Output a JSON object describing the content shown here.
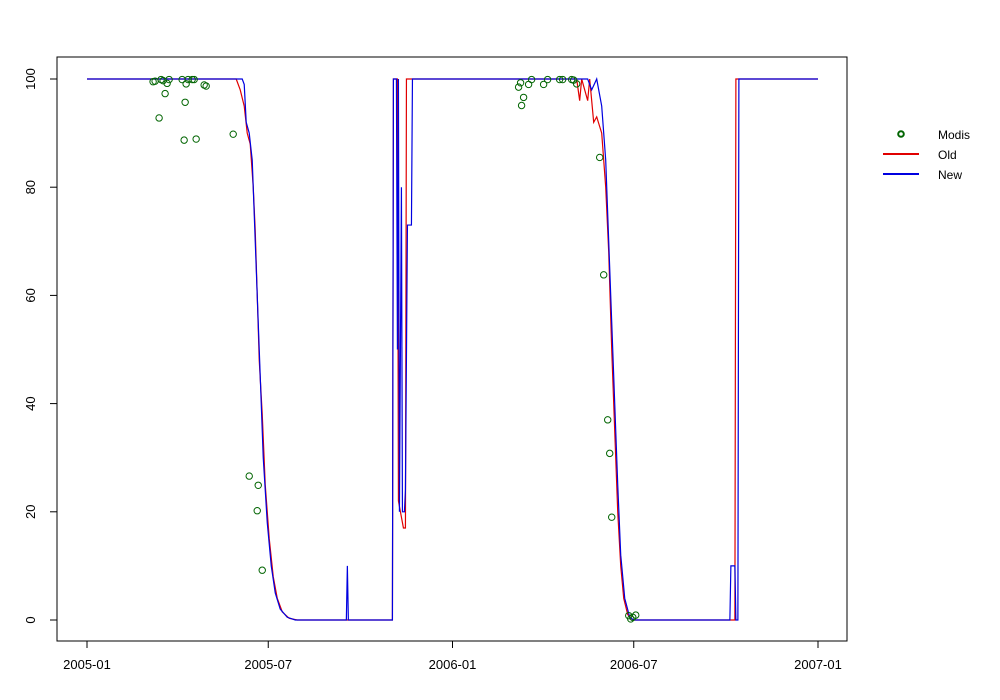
{
  "chart_data": {
    "type": "line",
    "title": "",
    "xlabel": "",
    "ylabel": "",
    "xlim": [
      "2005-01-01",
      "2007-01-01"
    ],
    "ylim": [
      0,
      100
    ],
    "x_ticks": [
      "2005-01",
      "2005-07",
      "2006-01",
      "2006-07",
      "2007-01"
    ],
    "y_ticks": [
      0,
      20,
      40,
      60,
      80,
      100
    ],
    "grid": false,
    "legend_position": "right",
    "series": [
      {
        "name": "Modis",
        "kind": "scatter",
        "color": "#006400",
        "marker": "open-circle",
        "points": [
          [
            "2005-03-08",
            99.5
          ],
          [
            "2005-03-10",
            99.6
          ],
          [
            "2005-03-14",
            92.8
          ],
          [
            "2005-03-16",
            99.9
          ],
          [
            "2005-03-18",
            99.7
          ],
          [
            "2005-03-20",
            97.3
          ],
          [
            "2005-03-22",
            99.2
          ],
          [
            "2005-03-24",
            99.9
          ],
          [
            "2005-04-06",
            99.9
          ],
          [
            "2005-04-08",
            88.7
          ],
          [
            "2005-04-09",
            95.7
          ],
          [
            "2005-04-10",
            99.1
          ],
          [
            "2005-04-12",
            99.9
          ],
          [
            "2005-04-16",
            99.9
          ],
          [
            "2005-04-18",
            99.9
          ],
          [
            "2005-04-20",
            88.9
          ],
          [
            "2005-04-28",
            98.9
          ],
          [
            "2005-04-30",
            98.7
          ],
          [
            "2005-05-27",
            89.8
          ],
          [
            "2005-06-12",
            26.6
          ],
          [
            "2005-06-20",
            20.2
          ],
          [
            "2005-06-21",
            24.9
          ],
          [
            "2005-06-25",
            9.2
          ],
          [
            "2006-03-08",
            98.5
          ],
          [
            "2006-03-10",
            99.3
          ],
          [
            "2006-03-11",
            95.1
          ],
          [
            "2006-03-13",
            96.6
          ],
          [
            "2006-03-18",
            99.0
          ],
          [
            "2006-03-21",
            99.9
          ],
          [
            "2006-04-02",
            99.0
          ],
          [
            "2006-04-06",
            99.9
          ],
          [
            "2006-04-18",
            99.9
          ],
          [
            "2006-04-21",
            99.9
          ],
          [
            "2006-04-30",
            99.9
          ],
          [
            "2006-05-02",
            99.8
          ],
          [
            "2006-05-05",
            99.1
          ],
          [
            "2006-05-28",
            85.5
          ],
          [
            "2006-06-01",
            63.8
          ],
          [
            "2006-06-05",
            37.0
          ],
          [
            "2006-06-07",
            30.8
          ],
          [
            "2006-06-09",
            19.0
          ],
          [
            "2006-06-26",
            0.8
          ],
          [
            "2006-06-28",
            0.2
          ],
          [
            "2006-06-30",
            0.5
          ],
          [
            "2006-07-03",
            0.9
          ]
        ]
      },
      {
        "name": "Old",
        "kind": "line",
        "color": "#e00000",
        "points": [
          [
            "2005-01-01",
            100
          ],
          [
            "2005-05-30",
            100
          ],
          [
            "2005-06-03",
            98
          ],
          [
            "2005-06-07",
            95
          ],
          [
            "2005-06-10",
            90
          ],
          [
            "2005-06-13",
            88
          ],
          [
            "2005-06-16",
            80
          ],
          [
            "2005-06-18",
            72
          ],
          [
            "2005-06-20",
            60
          ],
          [
            "2005-06-22",
            48
          ],
          [
            "2005-06-25",
            38
          ],
          [
            "2005-06-28",
            25
          ],
          [
            "2005-07-02",
            15
          ],
          [
            "2005-07-06",
            8
          ],
          [
            "2005-07-10",
            4
          ],
          [
            "2005-07-15",
            1.5
          ],
          [
            "2005-07-22",
            0.3
          ],
          [
            "2005-07-30",
            0
          ],
          [
            "2005-11-02",
            0
          ],
          [
            "2005-11-03",
            100
          ],
          [
            "2005-11-07",
            100
          ],
          [
            "2005-11-08",
            22
          ],
          [
            "2005-11-10",
            20
          ],
          [
            "2005-11-13",
            17
          ],
          [
            "2005-11-15",
            17
          ],
          [
            "2005-11-16",
            100
          ],
          [
            "2006-04-28",
            100
          ],
          [
            "2006-05-05",
            100
          ],
          [
            "2006-05-08",
            96
          ],
          [
            "2006-05-10",
            100
          ],
          [
            "2006-05-13",
            98
          ],
          [
            "2006-05-16",
            96
          ],
          [
            "2006-05-18",
            100
          ],
          [
            "2006-05-22",
            92
          ],
          [
            "2006-05-25",
            93
          ],
          [
            "2006-05-30",
            90
          ],
          [
            "2006-06-03",
            80
          ],
          [
            "2006-06-06",
            68
          ],
          [
            "2006-06-09",
            50
          ],
          [
            "2006-06-11",
            40
          ],
          [
            "2006-06-13",
            30
          ],
          [
            "2006-06-15",
            20
          ],
          [
            "2006-06-18",
            10
          ],
          [
            "2006-06-21",
            4
          ],
          [
            "2006-06-25",
            1
          ],
          [
            "2006-06-30",
            0
          ],
          [
            "2006-10-10",
            0
          ],
          [
            "2006-10-11",
            100
          ],
          [
            "2007-01-01",
            100
          ]
        ]
      },
      {
        "name": "New",
        "kind": "line",
        "color": "#0000e0",
        "points": [
          [
            "2005-01-01",
            100
          ],
          [
            "2005-06-05",
            100
          ],
          [
            "2005-06-07",
            99
          ],
          [
            "2005-06-09",
            92
          ],
          [
            "2005-06-12",
            90
          ],
          [
            "2005-06-15",
            85
          ],
          [
            "2005-06-17",
            75
          ],
          [
            "2005-06-20",
            60
          ],
          [
            "2005-06-23",
            45
          ],
          [
            "2005-06-26",
            30
          ],
          [
            "2005-06-30",
            18
          ],
          [
            "2005-07-04",
            10
          ],
          [
            "2005-07-08",
            5
          ],
          [
            "2005-07-13",
            2
          ],
          [
            "2005-07-20",
            0.5
          ],
          [
            "2005-07-28",
            0
          ],
          [
            "2005-09-17",
            0
          ],
          [
            "2005-09-18",
            10
          ],
          [
            "2005-09-19",
            0
          ],
          [
            "2005-11-02",
            0
          ],
          [
            "2005-11-03",
            100
          ],
          [
            "2005-11-06",
            100
          ],
          [
            "2005-11-07",
            50
          ],
          [
            "2005-11-08",
            100
          ],
          [
            "2005-11-09",
            20
          ],
          [
            "2005-11-11",
            80
          ],
          [
            "2005-11-12",
            20
          ],
          [
            "2005-11-14",
            20
          ],
          [
            "2005-11-15",
            24
          ],
          [
            "2005-11-17",
            73
          ],
          [
            "2005-11-21",
            73
          ],
          [
            "2005-11-22",
            100
          ],
          [
            "2006-05-08",
            100
          ],
          [
            "2006-05-12",
            100
          ],
          [
            "2006-05-16",
            100
          ],
          [
            "2006-05-20",
            98
          ],
          [
            "2006-05-25",
            100
          ],
          [
            "2006-05-30",
            95
          ],
          [
            "2006-06-03",
            85
          ],
          [
            "2006-06-06",
            70
          ],
          [
            "2006-06-09",
            55
          ],
          [
            "2006-06-12",
            40
          ],
          [
            "2006-06-15",
            25
          ],
          [
            "2006-06-18",
            12
          ],
          [
            "2006-06-22",
            4
          ],
          [
            "2006-06-27",
            0.5
          ],
          [
            "2006-07-01",
            0
          ],
          [
            "2006-10-05",
            0
          ],
          [
            "2006-10-06",
            10
          ],
          [
            "2006-10-10",
            10
          ],
          [
            "2006-10-11",
            0
          ],
          [
            "2006-10-13",
            0
          ],
          [
            "2006-10-14",
            100
          ],
          [
            "2007-01-01",
            100
          ]
        ]
      }
    ]
  }
}
